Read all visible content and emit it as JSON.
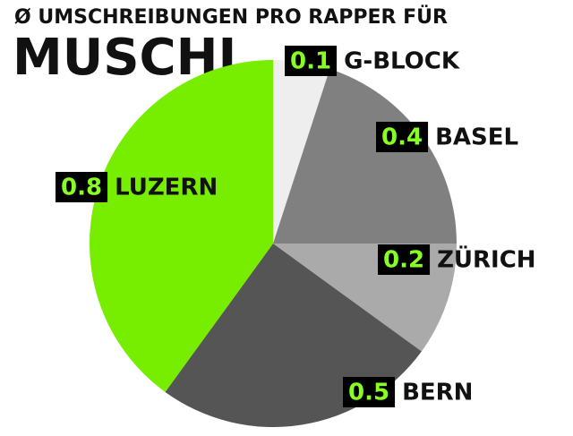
{
  "chart_data": {
    "type": "pie",
    "title": "Ø UMSCHREIBUNGEN PRO RAPPER FÜR",
    "subtitle": "MUSCHI",
    "categories": [
      "G-BLOCK",
      "BASEL",
      "ZÜRICH",
      "BERN",
      "LUZERN"
    ],
    "values": [
      0.1,
      0.4,
      0.2,
      0.5,
      0.8
    ],
    "colors": [
      "#eeeeee",
      "#808080",
      "#aaaaaa",
      "#555555",
      "#77ee00"
    ]
  }
}
